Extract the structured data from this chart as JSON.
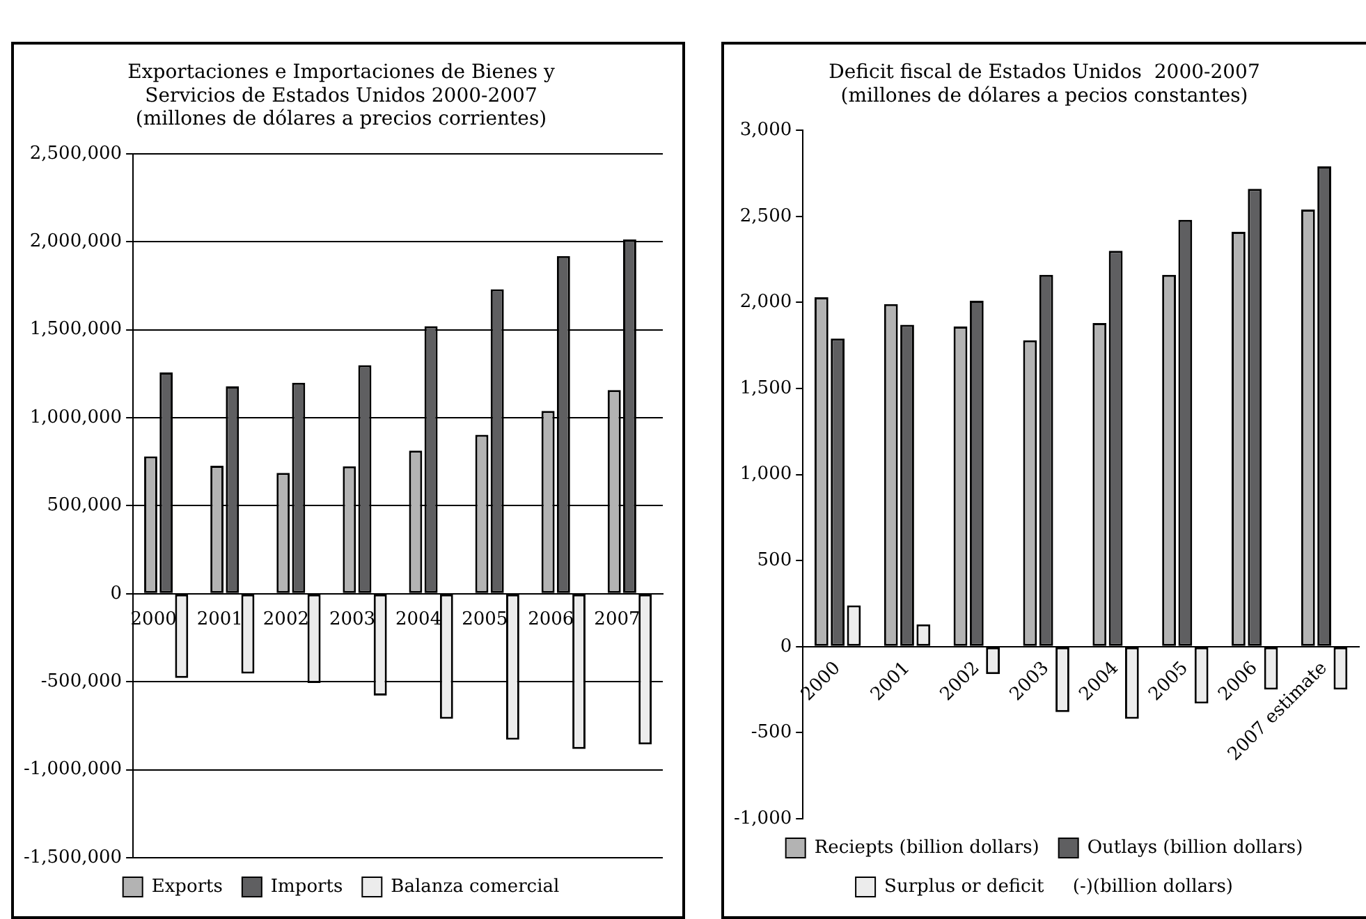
{
  "chart_data": [
    {
      "type": "bar",
      "title": "Exportaciones e Importaciones de Bienes y\nServicios de Estados Unidos 2000-2007\n(millones de dólares a precios corrientes)",
      "categories": [
        "2000",
        "2001",
        "2002",
        "2003",
        "2004",
        "2005",
        "2006",
        "2007"
      ],
      "series": [
        {
          "name": "Exports",
          "color": "#b3b3b3",
          "values": [
            780000,
            727000,
            687000,
            724000,
            813000,
            903000,
            1039000,
            1157000
          ]
        },
        {
          "name": "Imports",
          "color": "#5f5f61",
          "values": [
            1257000,
            1178000,
            1199000,
            1299000,
            1520000,
            1730000,
            1919000,
            2013000
          ]
        },
        {
          "name": "Balanza comercial",
          "color": "#ececec",
          "values": [
            -478000,
            -454000,
            -507000,
            -578000,
            -711000,
            -830000,
            -882000,
            -856000
          ]
        }
      ],
      "ylim": [
        -1500000,
        2500000
      ],
      "yticks": [
        {
          "value": -1500000,
          "label": "-1,500,000"
        },
        {
          "value": -1000000,
          "label": "-1,000,000"
        },
        {
          "value": -500000,
          "label": "-500,000"
        },
        0,
        {
          "value": 500000,
          "label": "500,000"
        },
        {
          "value": 1000000,
          "label": "1,000,000"
        },
        {
          "value": 1500000,
          "label": "1,500,000"
        },
        {
          "value": 2000000,
          "label": "2,000,000"
        },
        {
          "value": 2500000,
          "label": "2,500,000"
        }
      ],
      "grid": "y",
      "legend": "bottom"
    },
    {
      "type": "bar",
      "title": "Deficit fiscal de Estados Unidos  2000-2007\n(millones de dólares a pecios constantes)",
      "categories": [
        "2000",
        "2001",
        "2002",
        "2003",
        "2004",
        "2005",
        "2006",
        "2007 estimate"
      ],
      "series": [
        {
          "name": "Reciepts (billion dollars)",
          "color": "#b3b3b3",
          "values": [
            2030,
            1990,
            1860,
            1780,
            1880,
            2160,
            2410,
            2540
          ]
        },
        {
          "name": "Outlays (billion dollars)",
          "color": "#5f5f61",
          "values": [
            1790,
            1870,
            2010,
            2160,
            2300,
            2480,
            2660,
            2790
          ]
        },
        {
          "name": "Surplus or deficit     (-)(billion dollars)",
          "color": "#ececec",
          "values": [
            240,
            130,
            -160,
            -380,
            -420,
            -330,
            -250,
            -250
          ]
        }
      ],
      "ylim": [
        -1000,
        3000
      ],
      "yticks": [
        {
          "value": -1000,
          "label": "-1,000"
        },
        {
          "value": -500,
          "label": "-500"
        },
        0,
        {
          "value": 500,
          "label": "500"
        },
        {
          "value": 1000,
          "label": "1,000"
        },
        {
          "value": 1500,
          "label": "1,500"
        },
        {
          "value": 2000,
          "label": "2,000"
        },
        {
          "value": 2500,
          "label": "2,500"
        },
        {
          "value": 3000,
          "label": "3,000"
        }
      ],
      "grid": false,
      "legend": "bottom"
    }
  ]
}
